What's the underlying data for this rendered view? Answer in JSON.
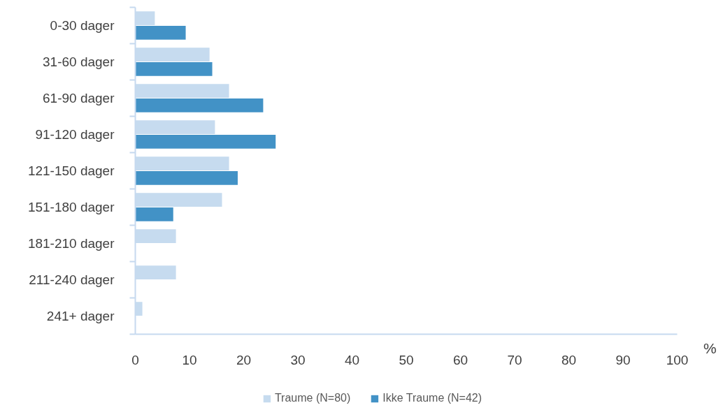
{
  "chart_data": {
    "type": "bar",
    "orientation": "horizontal",
    "categories": [
      "0-30 dager",
      "31-60 dager",
      "61-90 dager",
      "91-120 dager",
      "121-150 dager",
      "151-180 dager",
      "181-210 dager",
      "211-240 dager",
      "241+ dager"
    ],
    "series": [
      {
        "name": "Traume (N=80)",
        "color": "#c6dbef",
        "values": [
          3.6,
          13.7,
          17.3,
          14.7,
          17.3,
          16.0,
          7.5,
          7.5,
          1.3
        ]
      },
      {
        "name": "Ikke Traume (N=42)",
        "color": "#4292c6",
        "values": [
          9.3,
          14.2,
          23.6,
          25.9,
          18.9,
          7.0,
          0,
          0,
          0
        ]
      }
    ],
    "xlabel": "%",
    "xlim": [
      0,
      100
    ],
    "xticks": [
      0,
      10,
      20,
      30,
      40,
      50,
      60,
      70,
      80,
      90,
      100
    ],
    "grid": false,
    "legend": "bottom"
  }
}
